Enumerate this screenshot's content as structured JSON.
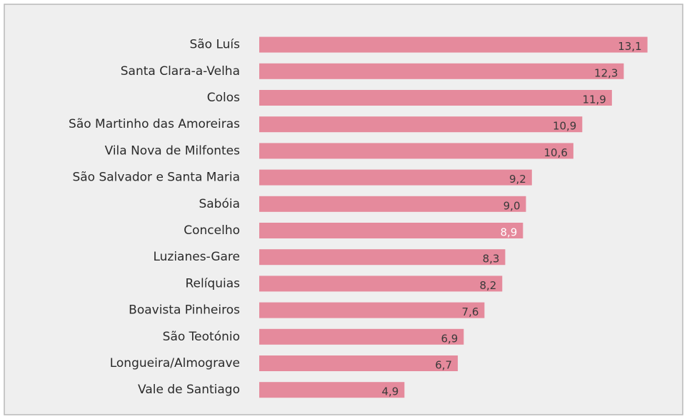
{
  "chart_data": {
    "type": "bar",
    "orientation": "horizontal",
    "categories": [
      "São Luís",
      "Santa Clara-a-Velha",
      "Colos",
      "São Martinho das Amoreiras",
      "Vila Nova de Milfontes",
      "São Salvador e Santa Maria",
      "Sabóia",
      "Concelho",
      "Luzianes-Gare",
      "Relíquias",
      "Boavista Pinheiros",
      "São Teotónio",
      "Longueira/Almograve",
      "Vale de Santiago"
    ],
    "values": [
      13.1,
      12.3,
      11.9,
      10.9,
      10.6,
      9.2,
      9.0,
      8.9,
      8.3,
      8.2,
      7.6,
      6.9,
      6.7,
      4.9
    ],
    "value_labels": [
      "13,1",
      "12,3",
      "11,9",
      "10,9",
      "10,6",
      "9,2",
      "9,0",
      "8,9",
      "8,3",
      "8,2",
      "7,6",
      "6,9",
      "6,7",
      "4,9"
    ],
    "color": "#e58a9c",
    "label_color": "#3a3a3a",
    "highlight": "Concelho",
    "highlight_label_color": "#ffffff",
    "xlim": [
      0,
      14
    ]
  }
}
